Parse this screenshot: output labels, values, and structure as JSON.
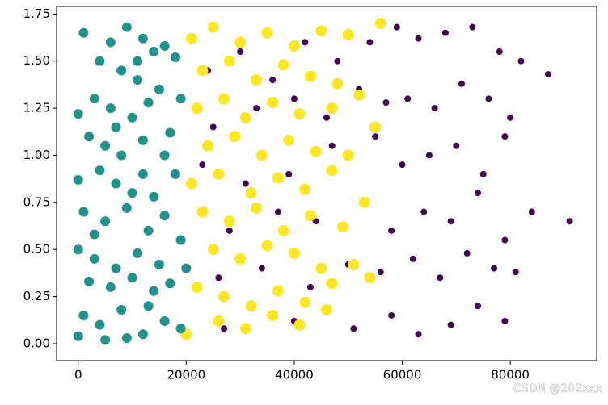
{
  "chart_data": {
    "type": "scatter",
    "xlim": [
      -4000,
      96000
    ],
    "ylim": [
      -0.09,
      1.79
    ],
    "xticks": [
      0,
      20000,
      40000,
      60000,
      80000
    ],
    "yticks": [
      {
        "value": 0,
        "label": "0.00"
      },
      {
        "value": 0.25,
        "label": "0.25"
      },
      {
        "value": 0.5,
        "label": "0.50"
      },
      {
        "value": 0.75,
        "label": "0.75"
      },
      {
        "value": 1,
        "label": "1.00"
      },
      {
        "value": 1.25,
        "label": "1.25"
      },
      {
        "value": 1.5,
        "label": "1.50"
      },
      {
        "value": 1.75,
        "label": "1.75"
      }
    ],
    "series": [
      {
        "color": "#440154",
        "x": [
          24000,
          30000,
          36000,
          42000,
          48000,
          54000,
          59000,
          63000,
          68000,
          73000,
          78000,
          82000,
          87000,
          25000,
          33000,
          40000,
          46000,
          52000,
          57000,
          61000,
          66000,
          71000,
          76000,
          80000,
          23000,
          31000,
          39000,
          47000,
          55000,
          60000,
          65000,
          70000,
          75000,
          79000,
          28000,
          37000,
          44000,
          53000,
          58000,
          64000,
          69000,
          74000,
          79000,
          84000,
          91000,
          26000,
          34000,
          43000,
          50000,
          56000,
          62000,
          67000,
          72000,
          77000,
          81000,
          27000,
          40000,
          51000,
          58000,
          63000,
          69000,
          74000,
          79000
        ],
        "values": [
          1.45,
          1.55,
          1.4,
          1.6,
          1.5,
          1.6,
          1.68,
          1.62,
          1.65,
          1.68,
          1.55,
          1.5,
          1.43,
          1.15,
          1.25,
          1.3,
          1.2,
          1.35,
          1.28,
          1.3,
          1.25,
          1.38,
          1.3,
          1.2,
          0.95,
          0.85,
          0.9,
          1.05,
          1.1,
          0.95,
          1.0,
          1.05,
          0.9,
          1.1,
          0.6,
          0.7,
          0.65,
          0.75,
          0.6,
          0.7,
          0.65,
          0.8,
          0.55,
          0.7,
          0.65,
          0.35,
          0.4,
          0.3,
          0.42,
          0.38,
          0.45,
          0.35,
          0.48,
          0.4,
          0.38,
          0.08,
          0.12,
          0.08,
          0.15,
          0.05,
          0.1,
          0.2,
          0.12
        ]
      },
      {
        "color": "#fde725",
        "x": [
          21000,
          25000,
          30000,
          35000,
          40000,
          45000,
          50000,
          56000,
          23000,
          28000,
          33000,
          38000,
          43000,
          48000,
          22000,
          27000,
          31000,
          36000,
          41000,
          47000,
          52000,
          24000,
          29000,
          34000,
          39000,
          44000,
          50000,
          55000,
          21000,
          26000,
          32000,
          37000,
          42000,
          47000,
          23000,
          28000,
          33000,
          38000,
          43000,
          49000,
          53000,
          25000,
          30000,
          35000,
          40000,
          45000,
          51000,
          22000,
          27000,
          32000,
          37000,
          42000,
          47000,
          54000,
          20000,
          26000,
          31000,
          36000,
          41000,
          46000
        ],
        "values": [
          1.62,
          1.68,
          1.6,
          1.65,
          1.58,
          1.66,
          1.64,
          1.7,
          1.45,
          1.5,
          1.4,
          1.48,
          1.42,
          1.38,
          1.25,
          1.3,
          1.2,
          1.28,
          1.22,
          1.25,
          1.32,
          1.05,
          1.1,
          1.0,
          1.08,
          1.02,
          1.0,
          1.15,
          0.85,
          0.9,
          0.8,
          0.88,
          0.82,
          0.92,
          0.7,
          0.65,
          0.72,
          0.6,
          0.68,
          0.62,
          0.75,
          0.5,
          0.45,
          0.52,
          0.48,
          0.4,
          0.42,
          0.3,
          0.25,
          0.2,
          0.28,
          0.22,
          0.32,
          0.35,
          0.05,
          0.12,
          0.08,
          0.15,
          0.1,
          0.18
        ]
      },
      {
        "color": "#21918c",
        "x": [
          1000,
          6000,
          9000,
          12000,
          14000,
          4000,
          8000,
          11000,
          16000,
          18000,
          0,
          3000,
          6000,
          10000,
          13000,
          15000,
          19000,
          2000,
          5000,
          8000,
          12000,
          17000,
          0,
          4000,
          7000,
          10000,
          14000,
          18000,
          1000,
          5000,
          9000,
          13000,
          16000,
          19000,
          0,
          3000,
          7000,
          11000,
          15000,
          20000,
          2000,
          6000,
          10000,
          14000,
          17000,
          1000,
          4000,
          8000,
          12000,
          16000,
          19000,
          0,
          5000,
          9000,
          13000,
          11000,
          7000,
          3000,
          16000,
          12000
        ],
        "values": [
          1.65,
          1.6,
          1.68,
          1.62,
          1.55,
          1.5,
          1.45,
          1.4,
          1.58,
          1.52,
          1.22,
          1.3,
          1.25,
          1.2,
          1.28,
          1.35,
          1.3,
          1.1,
          1.05,
          1.0,
          1.08,
          1.12,
          0.87,
          0.92,
          0.85,
          0.8,
          0.78,
          0.9,
          0.7,
          0.65,
          0.72,
          0.6,
          0.68,
          0.55,
          0.5,
          0.45,
          0.4,
          0.48,
          0.42,
          0.4,
          0.33,
          0.3,
          0.35,
          0.28,
          0.32,
          0.15,
          0.1,
          0.18,
          0.05,
          0.12,
          0.08,
          0.04,
          0.02,
          0.03,
          0.2,
          1.5,
          1.15,
          0.58,
          1.0,
          0.9
        ]
      }
    ]
  },
  "watermark": "CSDN @202xxx"
}
